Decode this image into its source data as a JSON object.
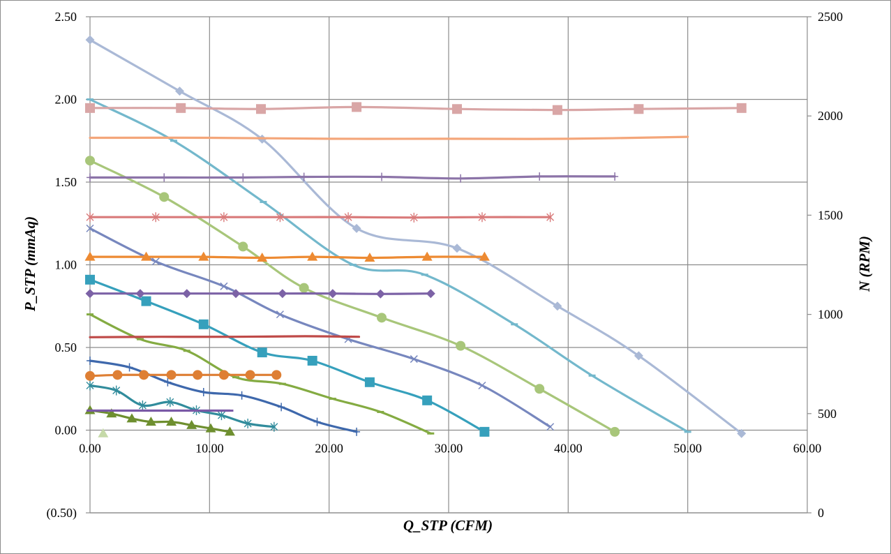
{
  "chart_data": {
    "type": "line",
    "xlabel": "Q_STP (CFM)",
    "ylabel": "P_STP (mmAq)",
    "y2label": "N (RPM)",
    "xlim": [
      0,
      60
    ],
    "ylim": [
      -0.5,
      2.5
    ],
    "y2lim": [
      0,
      2500
    ],
    "grid": true,
    "legend": "none",
    "x_ticks": [
      "0.00",
      "10.00",
      "20.00",
      "30.00",
      "40.00",
      "50.00",
      "60.00"
    ],
    "y_ticks": [
      {
        "value": 2.5,
        "label": "2.50",
        "color": "#000000"
      },
      {
        "value": 2.0,
        "label": "2.00",
        "color": "#000000"
      },
      {
        "value": 1.5,
        "label": "1.50",
        "color": "#000000"
      },
      {
        "value": 1.0,
        "label": "1.00",
        "color": "#000000"
      },
      {
        "value": 0.5,
        "label": "0.50",
        "color": "#000000"
      },
      {
        "value": 0.0,
        "label": "0.00",
        "color": "#000000"
      },
      {
        "value": -0.5,
        "label": "(0.50)",
        "color": "#FF0000"
      }
    ],
    "y2_ticks": [
      "2500",
      "2000",
      "1500",
      "1000",
      "500",
      "0"
    ],
    "pressure_series": [
      {
        "color": "#AAB9D6",
        "marker": "diamond",
        "x": [
          0.0,
          7.5,
          14.4,
          22.3,
          30.7,
          39.1,
          45.9,
          54.5
        ],
        "y": [
          2.36,
          2.05,
          1.76,
          1.22,
          1.1,
          0.75,
          0.45,
          -0.02
        ]
      },
      {
        "color": "#73B8CC",
        "marker": "dash",
        "x": [
          0.0,
          7.0,
          14.5,
          22.0,
          28.0,
          35.5,
          42.0,
          50.0
        ],
        "y": [
          2.0,
          1.75,
          1.38,
          1.0,
          0.94,
          0.64,
          0.33,
          -0.01
        ]
      },
      {
        "color": "#A8C67A",
        "marker": "circle",
        "x": [
          0.0,
          6.2,
          12.8,
          17.9,
          24.4,
          31.0,
          37.6,
          43.9
        ],
        "y": [
          1.63,
          1.41,
          1.11,
          0.86,
          0.68,
          0.51,
          0.25,
          -0.01
        ]
      },
      {
        "color": "#7787BE",
        "marker": "x",
        "x": [
          0.0,
          5.5,
          11.2,
          15.9,
          21.6,
          27.1,
          32.8,
          38.5
        ],
        "y": [
          1.22,
          1.02,
          0.87,
          0.7,
          0.55,
          0.43,
          0.27,
          0.02
        ]
      },
      {
        "color": "#36A0BC",
        "marker": "square",
        "x": [
          0.0,
          4.7,
          9.5,
          14.4,
          18.6,
          23.4,
          28.2,
          33.0
        ],
        "y": [
          0.91,
          0.78,
          0.64,
          0.47,
          0.42,
          0.29,
          0.18,
          -0.01
        ]
      },
      {
        "color": "#84AB42",
        "marker": "dash",
        "x": [
          0.0,
          4.2,
          8.1,
          12.2,
          16.1,
          20.3,
          24.3,
          28.5
        ],
        "y": [
          0.7,
          0.55,
          0.48,
          0.32,
          0.28,
          0.19,
          0.11,
          -0.02
        ]
      },
      {
        "color": "#3E68AC",
        "marker": "plus",
        "x": [
          0.0,
          3.3,
          6.5,
          9.5,
          12.7,
          16.0,
          19.0,
          22.3
        ],
        "y": [
          0.42,
          0.38,
          0.29,
          0.23,
          0.21,
          0.14,
          0.05,
          -0.01
        ]
      },
      {
        "color": "#318C9C",
        "marker": "asterisk",
        "x": [
          0.0,
          2.2,
          4.4,
          6.7,
          8.9,
          11.0,
          13.2,
          15.4
        ],
        "y": [
          0.27,
          0.24,
          0.15,
          0.17,
          0.12,
          0.09,
          0.04,
          0.02
        ]
      },
      {
        "color": "#6E8F2F",
        "marker": "triangle",
        "x": [
          0.0,
          1.8,
          3.5,
          5.1,
          6.8,
          8.5,
          10.1,
          11.7
        ],
        "y": [
          0.12,
          0.1,
          0.07,
          0.05,
          0.05,
          0.03,
          0.01,
          -0.01
        ]
      }
    ],
    "rpm_series": [
      {
        "color": "#D9A6A6",
        "marker": "square",
        "x": [
          0.0,
          7.6,
          14.3,
          22.3,
          30.7,
          39.1,
          45.9,
          54.5
        ],
        "y": [
          2040,
          2040,
          2035,
          2045,
          2035,
          2030,
          2035,
          2040
        ]
      },
      {
        "color": "#F4A67A",
        "marker": "none",
        "x": [
          0.0,
          10.0,
          20.0,
          30.0,
          40.0,
          50.0
        ],
        "y": [
          1890,
          1890,
          1885,
          1885,
          1885,
          1895
        ]
      },
      {
        "color": "#8C74A8",
        "marker": "plus",
        "x": [
          0.0,
          6.2,
          12.8,
          17.9,
          24.4,
          31.0,
          37.6,
          43.9
        ],
        "y": [
          1690,
          1690,
          1690,
          1693,
          1693,
          1685,
          1695,
          1695
        ]
      },
      {
        "color": "#D97A7A",
        "marker": "asterisk",
        "x": [
          0.0,
          5.5,
          11.2,
          15.9,
          21.6,
          27.1,
          32.8,
          38.5
        ],
        "y": [
          1490,
          1490,
          1490,
          1490,
          1490,
          1488,
          1490,
          1490
        ]
      },
      {
        "color": "#ED8A32",
        "marker": "triangle",
        "x": [
          0.0,
          4.7,
          9.5,
          14.4,
          18.6,
          23.4,
          28.2,
          33.0
        ],
        "y": [
          1290,
          1290,
          1290,
          1285,
          1290,
          1285,
          1290,
          1290
        ]
      },
      {
        "color": "#7C62A6",
        "marker": "diamond",
        "x": [
          0.0,
          4.2,
          8.1,
          12.2,
          16.1,
          20.3,
          24.3,
          28.5
        ],
        "y": [
          1105,
          1105,
          1105,
          1105,
          1105,
          1105,
          1103,
          1105
        ]
      },
      {
        "color": "#BF4A48",
        "marker": "none",
        "x": [
          0.0,
          6.0,
          12.0,
          18.0,
          22.5
        ],
        "y": [
          885,
          887,
          887,
          890,
          887
        ]
      },
      {
        "color": "#DE7F34",
        "marker": "circle",
        "x": [
          0.0,
          2.3,
          4.5,
          6.8,
          9.0,
          11.2,
          13.4,
          15.6
        ],
        "y": [
          690,
          695,
          695,
          695,
          695,
          695,
          695,
          695
        ]
      },
      {
        "color": "#7A59A6",
        "marker": "dash",
        "x": [
          0.0,
          1.8,
          3.5,
          5.1,
          6.8,
          8.5,
          10.1,
          11.7
        ],
        "y": [
          515,
          515,
          515,
          515,
          515,
          515,
          515,
          515
        ]
      },
      {
        "color": "#C5D9A8",
        "marker": "triangle",
        "x": [
          1.1
        ],
        "y": [
          400
        ]
      }
    ]
  }
}
